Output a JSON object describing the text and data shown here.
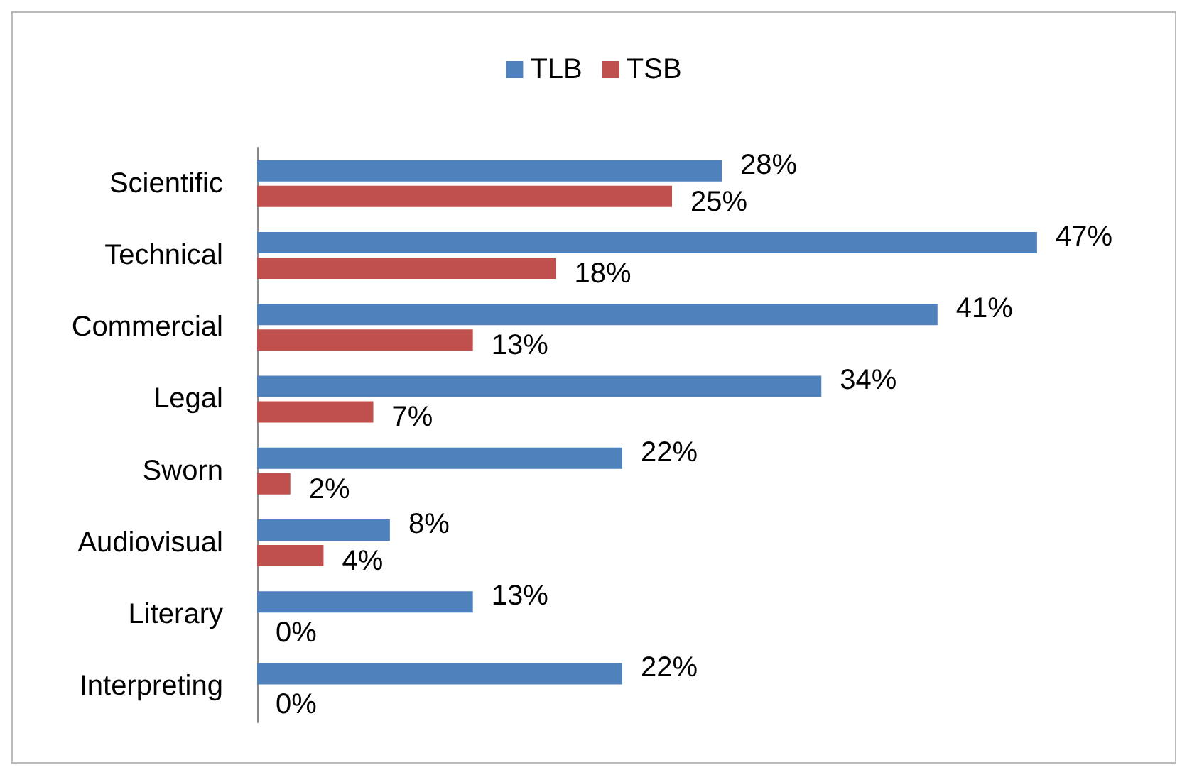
{
  "chart_data": {
    "type": "bar",
    "orientation": "horizontal",
    "categories": [
      "Scientific",
      "Technical",
      "Commercial",
      "Legal",
      "Sworn",
      "Audiovisual",
      "Literary",
      "Interpreting"
    ],
    "series": [
      {
        "name": "TLB",
        "color": "#4f81bd",
        "values": [
          28,
          47,
          41,
          34,
          22,
          8,
          13,
          22
        ],
        "value_labels": [
          "28%",
          "47%",
          "41%",
          "34%",
          "22%",
          "8%",
          "13%",
          "22%"
        ]
      },
      {
        "name": "TSB",
        "color": "#c0504d",
        "values": [
          25,
          18,
          13,
          7,
          2,
          4,
          0,
          0
        ],
        "value_labels": [
          "25%",
          "18%",
          "13%",
          "7%",
          "2%",
          "4%",
          "0%",
          "0%"
        ]
      }
    ],
    "legend": "top",
    "grid": false
  }
}
